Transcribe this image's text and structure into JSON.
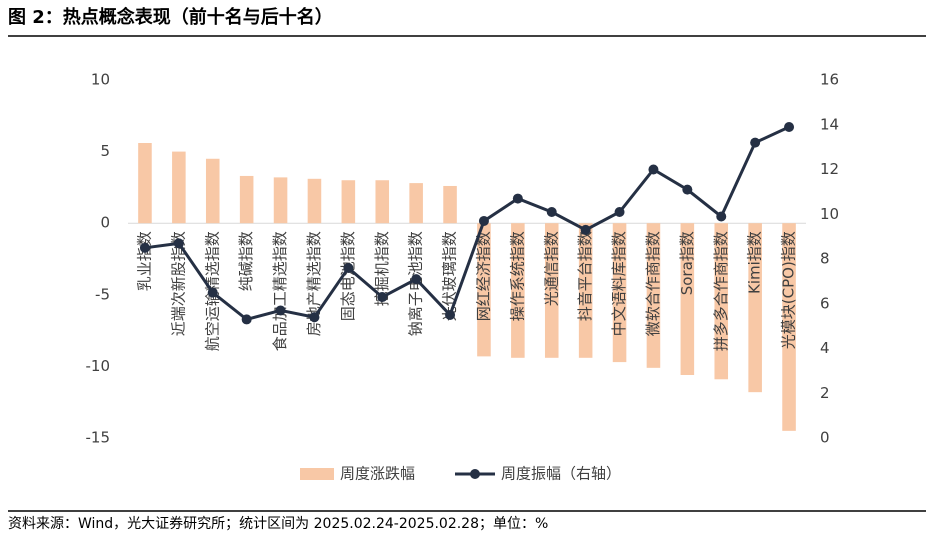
{
  "chart_data": {
    "type": "bar-line",
    "title": "图 2：热点概念表现（前十名与后十名）",
    "source": "资料来源：Wind，光大证券研究所；统计区间为 2025.02.24-2025.02.28；单位：%",
    "categories": [
      "乳业指数",
      "近端次新股指数",
      "航空运输精选指数",
      "纯碱指数",
      "食品加工精选指数",
      "房地产精选指数",
      "固态电池指数",
      "挖掘机指数",
      "钠离子电池指数",
      "光伏玻璃指数",
      "网红经济指数",
      "操作系统指数",
      "光通信指数",
      "抖音平台指数",
      "中文语料库指数",
      "微软合作商指数",
      "Sora指数",
      "拼多多合作商指数",
      "Kimi指数",
      "光模块(CPO)指数"
    ],
    "series": [
      {
        "name": "周度涨跌幅",
        "type": "bar",
        "color": "#F8C8A6",
        "values": [
          5.6,
          5.0,
          4.5,
          3.3,
          3.2,
          3.1,
          3.0,
          3.0,
          2.8,
          2.6,
          -9.3,
          -9.4,
          -9.4,
          -9.4,
          -9.7,
          -10.1,
          -10.6,
          -10.9,
          -11.8,
          -14.5
        ]
      },
      {
        "name": "周度振幅（右轴）",
        "type": "line",
        "axis": "y2",
        "color": "#253044",
        "values": [
          8.5,
          8.7,
          6.5,
          5.3,
          5.7,
          5.4,
          7.6,
          6.3,
          7.1,
          5.5,
          9.7,
          10.7,
          10.1,
          9.3,
          10.1,
          12.0,
          11.1,
          9.9,
          13.2,
          13.9
        ]
      }
    ],
    "ylim": [
      -15,
      10
    ],
    "yticks": [
      -15,
      -10,
      -5,
      0,
      5,
      10
    ],
    "y2lim": [
      0,
      16
    ],
    "y2ticks": [
      0,
      2,
      4,
      6,
      8,
      10,
      12,
      14,
      16
    ],
    "legend": "bottom"
  }
}
